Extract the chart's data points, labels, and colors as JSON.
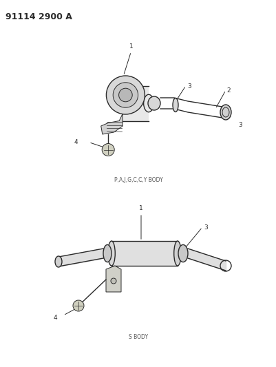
{
  "title": "91114 2900 A",
  "title_fontsize": 9,
  "title_fontweight": "bold",
  "bg_color": "#ffffff",
  "line_color": "#2a2a2a",
  "diagram1_caption": "P,A,J,G,C,C,Y BODY",
  "diagram2_caption": "S BODY",
  "caption_fontsize": 5.5,
  "label_fontsize": 6.5
}
